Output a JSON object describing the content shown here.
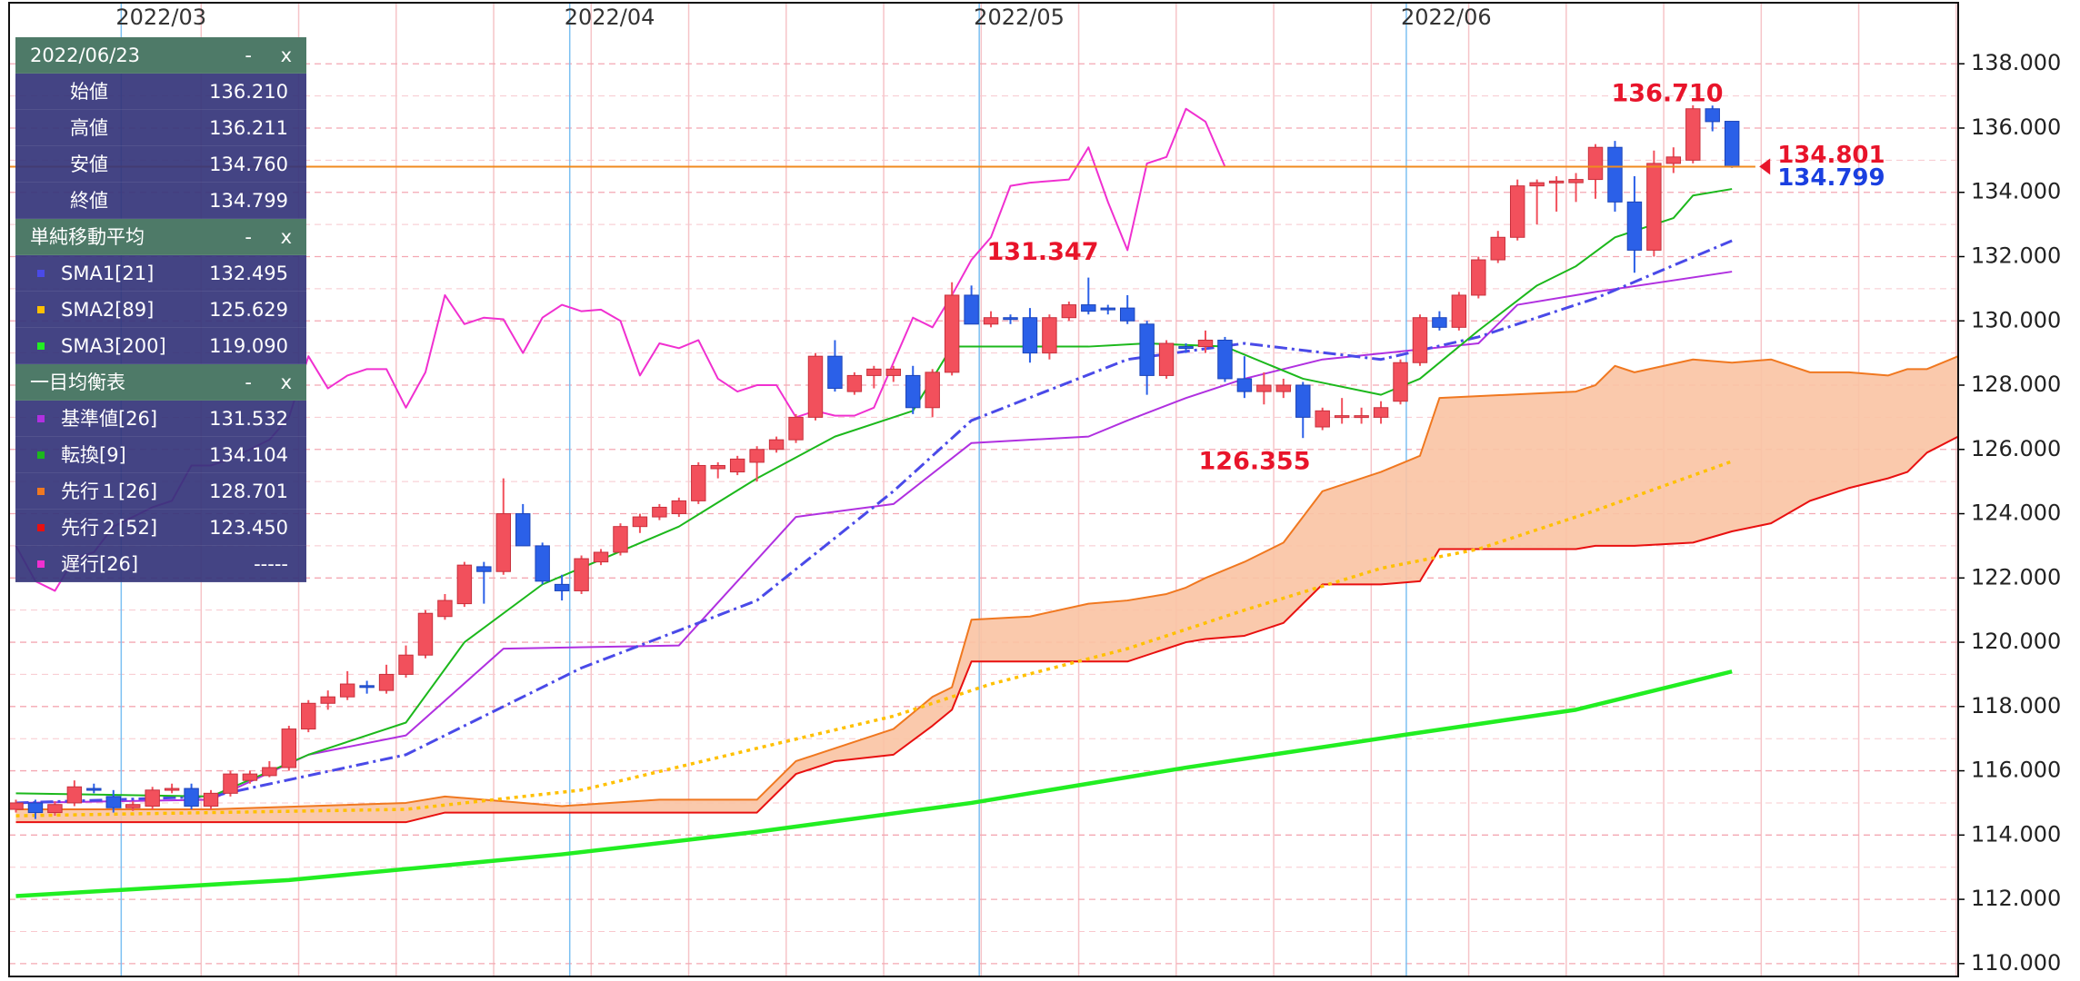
{
  "chart_data": {
    "type": "candlestick",
    "xlim": [
      -0.35,
      99.6
    ],
    "xticks": [
      {
        "value": 5.4,
        "label": "2022/03"
      },
      {
        "value": 28.4,
        "label": "2022/04"
      },
      {
        "value": 49.4,
        "label": "2022/05"
      },
      {
        "value": 71.3,
        "label": "2022/06"
      }
    ],
    "ylim": [
      109.6,
      139.9
    ],
    "yticks": [
      {
        "value": 110,
        "label": "110.000"
      },
      {
        "value": 112,
        "label": "112.000"
      },
      {
        "value": 114,
        "label": "114.000"
      },
      {
        "value": 116,
        "label": "116.000"
      },
      {
        "value": 118,
        "label": "118.000"
      },
      {
        "value": 120,
        "label": "120.000"
      },
      {
        "value": 122,
        "label": "122.000"
      },
      {
        "value": 124,
        "label": "124.000"
      },
      {
        "value": 126,
        "label": "126.000"
      },
      {
        "value": 128,
        "label": "128.000"
      },
      {
        "value": 130,
        "label": "130.000"
      },
      {
        "value": 132,
        "label": "132.000"
      },
      {
        "value": 134,
        "label": "134.000"
      },
      {
        "value": 136,
        "label": "136.000"
      },
      {
        "value": 138,
        "label": "138.000"
      }
    ],
    "grid": true,
    "up_color": "#f2505c",
    "down_color": "#2b60e8",
    "cloud_color": "#f9c3a3",
    "candles": {
      "open": [
        114.8,
        115.0,
        114.7,
        115.0,
        115.45,
        115.2,
        114.85,
        114.9,
        115.4,
        115.45,
        114.9,
        115.3,
        115.7,
        115.85,
        116.1,
        117.3,
        118.1,
        118.3,
        118.65,
        118.5,
        119.0,
        119.6,
        120.8,
        121.2,
        122.35,
        122.2,
        124.0,
        123.0,
        121.8,
        121.6,
        122.5,
        122.8,
        123.6,
        123.9,
        124.0,
        124.4,
        125.4,
        125.3,
        125.6,
        126.0,
        126.3,
        127.0,
        128.9,
        127.8,
        128.3,
        128.3,
        128.3,
        127.3,
        128.4,
        130.8,
        129.9,
        130.1,
        130.1,
        129.0,
        130.1,
        130.5,
        130.4,
        130.4,
        129.9,
        128.3,
        129.2,
        129.2,
        129.4,
        128.2,
        127.8,
        127.8,
        128.0,
        126.7,
        127.0,
        127.0,
        127.0,
        127.5,
        128.7,
        130.1,
        129.8,
        130.8,
        131.9,
        132.6,
        134.2,
        134.3,
        134.3,
        134.4,
        135.4,
        133.7,
        132.2,
        134.9,
        135.0,
        136.6,
        136.21
      ],
      "high": [
        115.1,
        115.1,
        115.05,
        115.7,
        115.6,
        115.4,
        115.05,
        115.5,
        115.6,
        115.6,
        115.4,
        116.0,
        116.0,
        116.3,
        117.4,
        118.2,
        118.5,
        119.1,
        118.8,
        119.3,
        119.9,
        121.0,
        121.5,
        122.5,
        122.5,
        125.1,
        124.3,
        123.1,
        122.1,
        122.7,
        122.9,
        123.7,
        124.0,
        124.3,
        124.5,
        125.6,
        125.6,
        125.8,
        126.1,
        126.4,
        127.1,
        129.0,
        129.4,
        128.4,
        128.6,
        128.6,
        128.6,
        128.5,
        131.2,
        131.1,
        130.3,
        130.2,
        130.4,
        130.2,
        130.6,
        131.347,
        130.5,
        130.8,
        130.0,
        129.4,
        129.3,
        129.7,
        129.5,
        128.9,
        128.4,
        128.2,
        128.1,
        127.3,
        127.6,
        127.3,
        127.5,
        128.8,
        130.2,
        130.3,
        130.9,
        132.0,
        132.8,
        134.4,
        134.4,
        134.5,
        134.6,
        135.5,
        135.6,
        134.5,
        135.3,
        135.4,
        136.71,
        136.7,
        136.211
      ],
      "low": [
        114.7,
        114.5,
        114.6,
        114.9,
        115.3,
        114.7,
        114.75,
        114.8,
        115.3,
        114.8,
        114.8,
        115.2,
        115.6,
        115.8,
        116.0,
        117.2,
        117.9,
        118.2,
        118.4,
        118.4,
        118.9,
        119.5,
        120.7,
        121.1,
        121.2,
        122.1,
        123.0,
        121.8,
        121.3,
        121.5,
        122.4,
        122.7,
        123.4,
        123.8,
        123.9,
        124.3,
        125.1,
        125.2,
        125.0,
        125.9,
        126.2,
        126.9,
        127.8,
        127.7,
        127.9,
        128.1,
        127.1,
        127.0,
        128.3,
        129.9,
        129.8,
        129.9,
        128.7,
        128.8,
        130.0,
        130.2,
        130.2,
        129.9,
        127.7,
        128.2,
        129.0,
        129.0,
        128.1,
        127.6,
        127.4,
        127.6,
        126.355,
        126.6,
        126.8,
        126.8,
        126.8,
        127.4,
        128.6,
        129.7,
        129.7,
        130.7,
        131.8,
        132.5,
        133.0,
        133.4,
        133.7,
        133.8,
        133.4,
        131.5,
        132.0,
        134.6,
        134.9,
        135.9,
        134.76
      ],
      "close": [
        115.0,
        114.7,
        114.95,
        115.5,
        115.4,
        114.85,
        114.95,
        115.4,
        115.45,
        114.9,
        115.3,
        115.9,
        115.9,
        116.1,
        117.3,
        118.1,
        118.3,
        118.7,
        118.6,
        119.0,
        119.6,
        120.9,
        121.3,
        122.4,
        122.2,
        124.0,
        123.0,
        121.9,
        121.6,
        122.6,
        122.8,
        123.6,
        123.9,
        124.2,
        124.4,
        125.5,
        125.5,
        125.7,
        126.0,
        126.3,
        127.0,
        128.9,
        127.9,
        128.3,
        128.5,
        128.5,
        127.3,
        128.4,
        130.8,
        129.9,
        130.1,
        130.05,
        129.0,
        130.1,
        130.5,
        130.3,
        130.35,
        130.0,
        128.3,
        129.3,
        129.15,
        129.4,
        128.2,
        127.8,
        128.0,
        128.0,
        127.0,
        127.2,
        127.05,
        127.05,
        127.3,
        128.7,
        130.1,
        129.8,
        130.8,
        131.9,
        132.6,
        134.2,
        134.3,
        134.35,
        134.4,
        135.4,
        133.7,
        132.2,
        134.9,
        135.1,
        136.6,
        136.2,
        134.799
      ]
    },
    "series": [
      {
        "name": "SMA1[21]",
        "readout": "132.495",
        "color": "#4a4ae8",
        "style": "dashdot",
        "width": 3,
        "x": [
          0,
          10,
          20,
          29,
          38,
          45,
          49,
          57,
          63,
          70,
          75,
          81,
          88
        ],
        "values": [
          115.0,
          115.2,
          116.5,
          119.2,
          121.3,
          124.7,
          126.9,
          128.8,
          129.3,
          128.8,
          129.5,
          130.7,
          132.495
        ]
      },
      {
        "name": "SMA2[89]",
        "readout": "125.629",
        "color": "#ffc000",
        "style": "dotted",
        "width": 3.5,
        "x": [
          0,
          20,
          29,
          38,
          45,
          50,
          57,
          63,
          70,
          75,
          81,
          88
        ],
        "values": [
          114.6,
          114.8,
          115.4,
          116.7,
          117.7,
          118.7,
          119.8,
          121.0,
          122.3,
          122.9,
          124.1,
          125.629
        ]
      },
      {
        "name": "SMA3[200]",
        "readout": "119.090",
        "color": "#22ee22",
        "style": "solid",
        "width": 4.5,
        "x": [
          0,
          14,
          28,
          38,
          49,
          60,
          71,
          80,
          88
        ],
        "values": [
          112.1,
          112.6,
          113.4,
          114.1,
          115.0,
          116.1,
          117.1,
          117.9,
          119.09
        ]
      },
      {
        "name": "基準値[26]",
        "readout": "131.532",
        "color": "#b030e0",
        "style": "solid",
        "width": 2,
        "x": [
          0,
          10,
          15,
          20,
          25,
          34,
          40,
          45,
          49,
          55,
          57,
          60,
          63,
          67,
          75,
          77,
          81,
          88
        ],
        "values": [
          115.0,
          115.1,
          116.5,
          117.1,
          119.8,
          119.9,
          123.9,
          124.3,
          126.2,
          126.4,
          126.9,
          127.6,
          128.2,
          128.8,
          129.3,
          130.5,
          130.9,
          131.532
        ]
      },
      {
        "name": "転換[9]",
        "readout": "134.104",
        "color": "#1cb81c",
        "style": "solid",
        "width": 2,
        "x": [
          0,
          10,
          15,
          20,
          23,
          27,
          34,
          38,
          42,
          46,
          48,
          55,
          58,
          62,
          66,
          70,
          72,
          75,
          78,
          80,
          82,
          85,
          86,
          88
        ],
        "values": [
          115.3,
          115.2,
          116.5,
          117.5,
          120.0,
          121.8,
          123.6,
          125.1,
          126.4,
          127.2,
          129.2,
          129.2,
          129.3,
          129.2,
          128.2,
          127.7,
          128.2,
          129.7,
          131.1,
          131.7,
          132.6,
          133.2,
          133.9,
          134.104
        ]
      },
      {
        "name": "先行１[26]",
        "readout": "128.701",
        "color": "#f07820",
        "style": "solid",
        "width": 2,
        "x": [
          0,
          10,
          20,
          22,
          28,
          33,
          38,
          40,
          42,
          45,
          47,
          48,
          49,
          52,
          55,
          57,
          59,
          60,
          61,
          63,
          65,
          67,
          70,
          72,
          73,
          80,
          81,
          82,
          83,
          86,
          88,
          90,
          92,
          94,
          96,
          97,
          98,
          99.6
        ],
        "values": [
          114.8,
          114.8,
          115.0,
          115.2,
          114.9,
          115.1,
          115.1,
          116.3,
          116.7,
          117.3,
          118.3,
          118.6,
          120.7,
          120.8,
          121.2,
          121.3,
          121.5,
          121.7,
          122.0,
          122.5,
          123.1,
          124.7,
          125.3,
          125.8,
          127.6,
          127.8,
          128.0,
          128.6,
          128.4,
          128.8,
          128.701,
          128.8,
          128.4,
          128.4,
          128.3,
          128.5,
          128.5,
          128.9
        ]
      },
      {
        "name": "先行２[52]",
        "readout": "123.450",
        "color": "#e81010",
        "style": "solid",
        "width": 2,
        "x": [
          0,
          10,
          20,
          22,
          28,
          33,
          38,
          40,
          42,
          45,
          47,
          48,
          49,
          52,
          55,
          57,
          59,
          60,
          61,
          63,
          65,
          67,
          70,
          72,
          73,
          80,
          81,
          82,
          83,
          86,
          88,
          90,
          92,
          94,
          96,
          97,
          98,
          99.6
        ],
        "values": [
          114.4,
          114.4,
          114.4,
          114.7,
          114.7,
          114.7,
          114.7,
          115.9,
          116.3,
          116.5,
          117.4,
          117.9,
          119.4,
          119.4,
          119.4,
          119.4,
          119.8,
          120.0,
          120.1,
          120.2,
          120.6,
          121.8,
          121.8,
          121.9,
          122.9,
          122.9,
          123.0,
          123.0,
          123.0,
          123.1,
          123.45,
          123.7,
          124.4,
          124.8,
          125.1,
          125.3,
          125.9,
          126.4
        ]
      },
      {
        "name": "遅行[26]",
        "readout": "-----",
        "color": "#f030d0",
        "style": "solid",
        "width": 2,
        "x": [
          0,
          1,
          2,
          3,
          4,
          5,
          6,
          7,
          8,
          9,
          10,
          11,
          12,
          13,
          14,
          15,
          16,
          17,
          18,
          19,
          20,
          21,
          22,
          23,
          24,
          25,
          26,
          27,
          28,
          29,
          30,
          31,
          32,
          33,
          34,
          35,
          36,
          37,
          38,
          39,
          40,
          41,
          42,
          43,
          44,
          45,
          46,
          47,
          48,
          49,
          50,
          51,
          52,
          53,
          54,
          55,
          56,
          57,
          58,
          59,
          60,
          61,
          62
        ],
        "values": [
          123.0,
          121.9,
          121.6,
          122.6,
          122.8,
          123.6,
          123.9,
          124.2,
          124.4,
          125.5,
          125.5,
          125.7,
          126.0,
          126.3,
          127.0,
          128.9,
          127.9,
          128.3,
          128.5,
          128.5,
          127.3,
          128.4,
          130.8,
          129.9,
          130.1,
          130.05,
          129.0,
          130.1,
          130.5,
          130.3,
          130.35,
          130.0,
          128.3,
          129.3,
          129.15,
          129.4,
          128.2,
          127.8,
          128.0,
          128.0,
          127.0,
          127.2,
          127.05,
          127.05,
          127.3,
          128.7,
          130.1,
          129.8,
          130.8,
          131.9,
          132.6,
          134.2,
          134.3,
          134.35,
          134.4,
          135.4,
          133.7,
          132.2,
          134.9,
          135.1,
          136.6,
          136.2,
          134.799
        ]
      }
    ],
    "price_line_color": "#f08a1e",
    "price_labels": [
      {
        "value": 134.801,
        "label": "134.801",
        "color": "#e8142a"
      },
      {
        "value": 134.799,
        "label": "134.799",
        "color": "#1a3fe0"
      }
    ],
    "annotations": [
      {
        "value": 136.71,
        "label": "136.710",
        "color": "#e8142a"
      },
      {
        "value": 131.347,
        "label": "131.347",
        "color": "#e8142a"
      },
      {
        "value": 126.355,
        "label": "126.355",
        "color": "#e8142a"
      }
    ]
  },
  "panel": {
    "date": "2022/06/23",
    "minimize": "-",
    "close": "x",
    "ohlc": [
      {
        "label": "始値",
        "value": "136.210"
      },
      {
        "label": "高値",
        "value": "136.211"
      },
      {
        "label": "安値",
        "value": "134.760"
      },
      {
        "label": "終値",
        "value": "134.799"
      }
    ],
    "sma_title": "単純移動平均",
    "ichimoku_title": "一目均衡表"
  }
}
